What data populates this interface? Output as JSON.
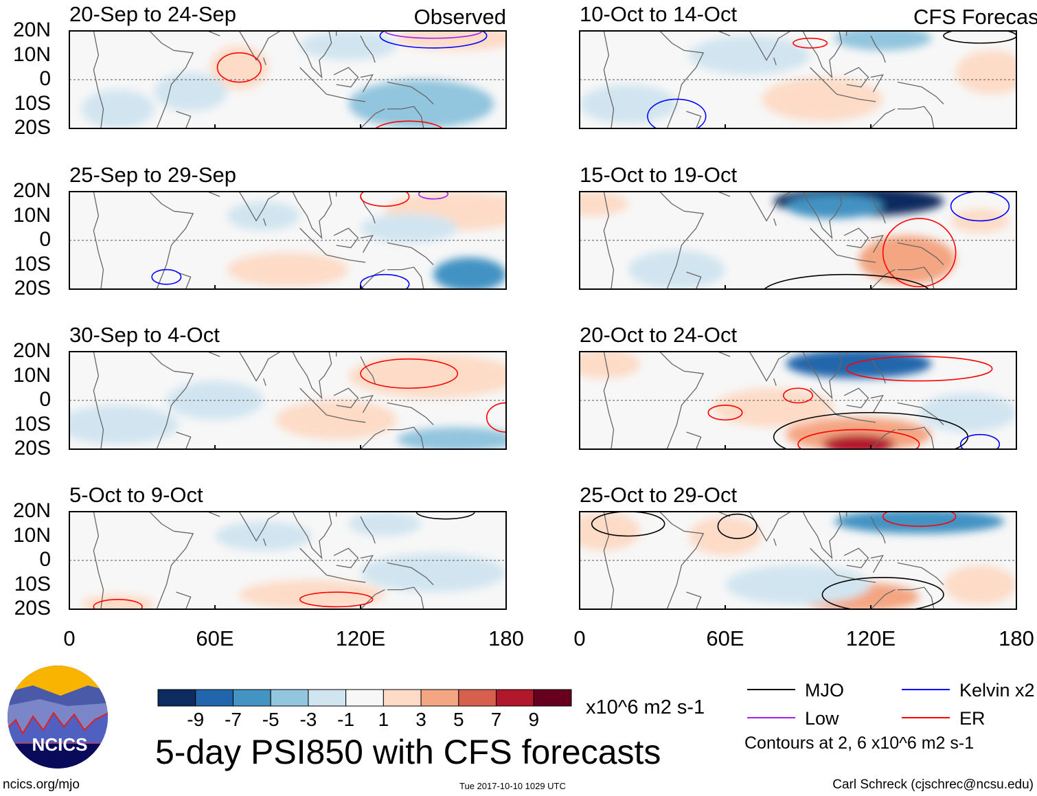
{
  "panels": [
    {
      "title": "20-Sep to 24-Sep",
      "tag": "Observed",
      "col": 0,
      "row": 0,
      "anoms": [
        [
          70,
          5,
          12,
          9,
          2
        ],
        [
          145,
          -10,
          30,
          10,
          -3
        ],
        [
          115,
          14,
          20,
          6,
          -2
        ],
        [
          160,
          17,
          25,
          5,
          3
        ],
        [
          50,
          -5,
          15,
          8,
          -1
        ],
        [
          20,
          -12,
          15,
          8,
          -1
        ]
      ],
      "contours": [
        [
          70,
          5,
          9,
          6,
          "ER"
        ],
        [
          150,
          18,
          22,
          5,
          "Kelvin x2"
        ],
        [
          150,
          20,
          20,
          3,
          "Low"
        ],
        [
          140,
          -22,
          15,
          5,
          "ER"
        ]
      ]
    },
    {
      "title": "25-Sep to 29-Sep",
      "col": 0,
      "row": 1,
      "anoms": [
        [
          160,
          12,
          30,
          8,
          3
        ],
        [
          90,
          -12,
          25,
          7,
          2
        ],
        [
          165,
          -14,
          15,
          7,
          -5
        ],
        [
          140,
          5,
          20,
          6,
          -2
        ],
        [
          80,
          10,
          15,
          6,
          -1
        ]
      ],
      "contours": [
        [
          130,
          18,
          10,
          4,
          "ER"
        ],
        [
          150,
          19,
          6,
          2,
          "Low"
        ],
        [
          40,
          -15,
          6,
          3,
          "Kelvin x2"
        ],
        [
          130,
          -18,
          10,
          4,
          "Kelvin x2"
        ]
      ]
    },
    {
      "title": "30-Sep to 4-Oct",
      "col": 0,
      "row": 2,
      "anoms": [
        [
          150,
          10,
          35,
          9,
          2
        ],
        [
          110,
          -8,
          25,
          8,
          2
        ],
        [
          160,
          -16,
          25,
          5,
          -3
        ],
        [
          20,
          -10,
          25,
          8,
          -2
        ],
        [
          60,
          0,
          20,
          8,
          -1
        ]
      ],
      "contours": [
        [
          140,
          11,
          20,
          6,
          "ER"
        ],
        [
          180,
          -7,
          8,
          6,
          "ER"
        ]
      ]
    },
    {
      "title": "5-Oct to 9-Oct",
      "col": 0,
      "row": 3,
      "anoms": [
        [
          100,
          -14,
          30,
          6,
          3
        ],
        [
          20,
          -18,
          15,
          4,
          2
        ],
        [
          80,
          10,
          20,
          6,
          -1
        ],
        [
          150,
          -5,
          30,
          8,
          -1
        ],
        [
          130,
          15,
          15,
          5,
          -2
        ]
      ],
      "contours": [
        [
          110,
          -16,
          15,
          3,
          "ER"
        ],
        [
          20,
          -19,
          10,
          3,
          "ER"
        ],
        [
          155,
          20,
          12,
          3,
          "MJO"
        ]
      ]
    },
    {
      "title": "10-Oct to 14-Oct",
      "tag": "CFS Forecast",
      "col": 1,
      "row": 0,
      "anoms": [
        [
          70,
          10,
          25,
          8,
          -2
        ],
        [
          125,
          17,
          20,
          5,
          -3
        ],
        [
          100,
          -8,
          25,
          9,
          2
        ],
        [
          170,
          3,
          15,
          9,
          2
        ],
        [
          20,
          -10,
          20,
          8,
          -1
        ]
      ],
      "contours": [
        [
          95,
          15,
          7,
          2,
          "ER"
        ],
        [
          40,
          -15,
          12,
          7,
          "Kelvin x2"
        ],
        [
          165,
          18,
          15,
          3,
          "MJO"
        ]
      ]
    },
    {
      "title": "15-Oct to 19-Oct",
      "col": 1,
      "row": 1,
      "anoms": [
        [
          115,
          16,
          35,
          6,
          -9
        ],
        [
          105,
          14,
          20,
          5,
          -5
        ],
        [
          135,
          -8,
          20,
          10,
          5
        ],
        [
          165,
          8,
          12,
          5,
          2
        ],
        [
          40,
          -12,
          20,
          8,
          -2
        ],
        [
          5,
          15,
          15,
          5,
          2
        ]
      ],
      "contours": [
        [
          140,
          -5,
          15,
          14,
          "ER"
        ],
        [
          165,
          14,
          12,
          6,
          "Kelvin x2"
        ],
        [
          110,
          -22,
          35,
          8,
          "MJO"
        ]
      ]
    },
    {
      "title": "20-Oct to 24-Oct",
      "col": 1,
      "row": 2,
      "anoms": [
        [
          115,
          15,
          30,
          6,
          -7
        ],
        [
          115,
          -14,
          30,
          7,
          5
        ],
        [
          115,
          -18,
          15,
          4,
          9
        ],
        [
          80,
          -3,
          25,
          8,
          3
        ],
        [
          10,
          15,
          15,
          6,
          3
        ],
        [
          160,
          -5,
          20,
          8,
          -1
        ]
      ],
      "contours": [
        [
          90,
          2,
          6,
          3,
          "ER"
        ],
        [
          60,
          -5,
          7,
          3,
          "ER"
        ],
        [
          140,
          13,
          30,
          5,
          "ER"
        ],
        [
          115,
          -18,
          25,
          6,
          "ER"
        ],
        [
          120,
          -15,
          40,
          10,
          "MJO"
        ],
        [
          165,
          -18,
          8,
          4,
          "Kelvin x2"
        ]
      ]
    },
    {
      "title": "25-Oct to 29-Oct",
      "col": 1,
      "row": 3,
      "anoms": [
        [
          140,
          16,
          35,
          5,
          -5
        ],
        [
          115,
          -15,
          25,
          6,
          5
        ],
        [
          10,
          12,
          15,
          8,
          3
        ],
        [
          60,
          10,
          15,
          8,
          2
        ],
        [
          90,
          -10,
          30,
          8,
          -1
        ],
        [
          165,
          -10,
          15,
          8,
          2
        ]
      ],
      "contours": [
        [
          125,
          -14,
          25,
          7,
          "MJO"
        ],
        [
          20,
          15,
          15,
          5,
          "MJO"
        ],
        [
          65,
          14,
          8,
          5,
          "MJO"
        ],
        [
          140,
          18,
          15,
          4,
          "ER"
        ]
      ]
    }
  ],
  "y_ticks": [
    "20N",
    "10N",
    "0",
    "10S",
    "20S"
  ],
  "x_ticks": [
    "0",
    "60E",
    "120E",
    "180"
  ],
  "colorbar": {
    "colors": [
      "#0c2c5f",
      "#2166ac",
      "#4393c3",
      "#92c5de",
      "#d1e5f0",
      "#f7f7f7",
      "#fddbc7",
      "#f4a582",
      "#d6604d",
      "#b2182b",
      "#67001f"
    ],
    "labels": [
      "-9",
      "-7",
      "-5",
      "-3",
      "-1",
      "1",
      "3",
      "5",
      "7",
      "9"
    ],
    "units": "x10^6 m2 s-1"
  },
  "legend": {
    "items": [
      {
        "label": "MJO",
        "color": "#000000"
      },
      {
        "label": "Kelvin x2",
        "color": "#0000ff"
      },
      {
        "label": "Low",
        "color": "#a020f0"
      },
      {
        "label": "ER",
        "color": "#ff0000"
      }
    ],
    "note": "Contours at 2, 6 x10^6 m2 s-1"
  },
  "main_title": "5-day PSI850 with CFS forecasts",
  "logo_text": "NCICS",
  "footer": {
    "left": "ncics.org/mjo",
    "center": "Tue 2017-10-10 1029 UTC",
    "right": "Carl Schreck (cjschrec@ncsu.edu)"
  }
}
